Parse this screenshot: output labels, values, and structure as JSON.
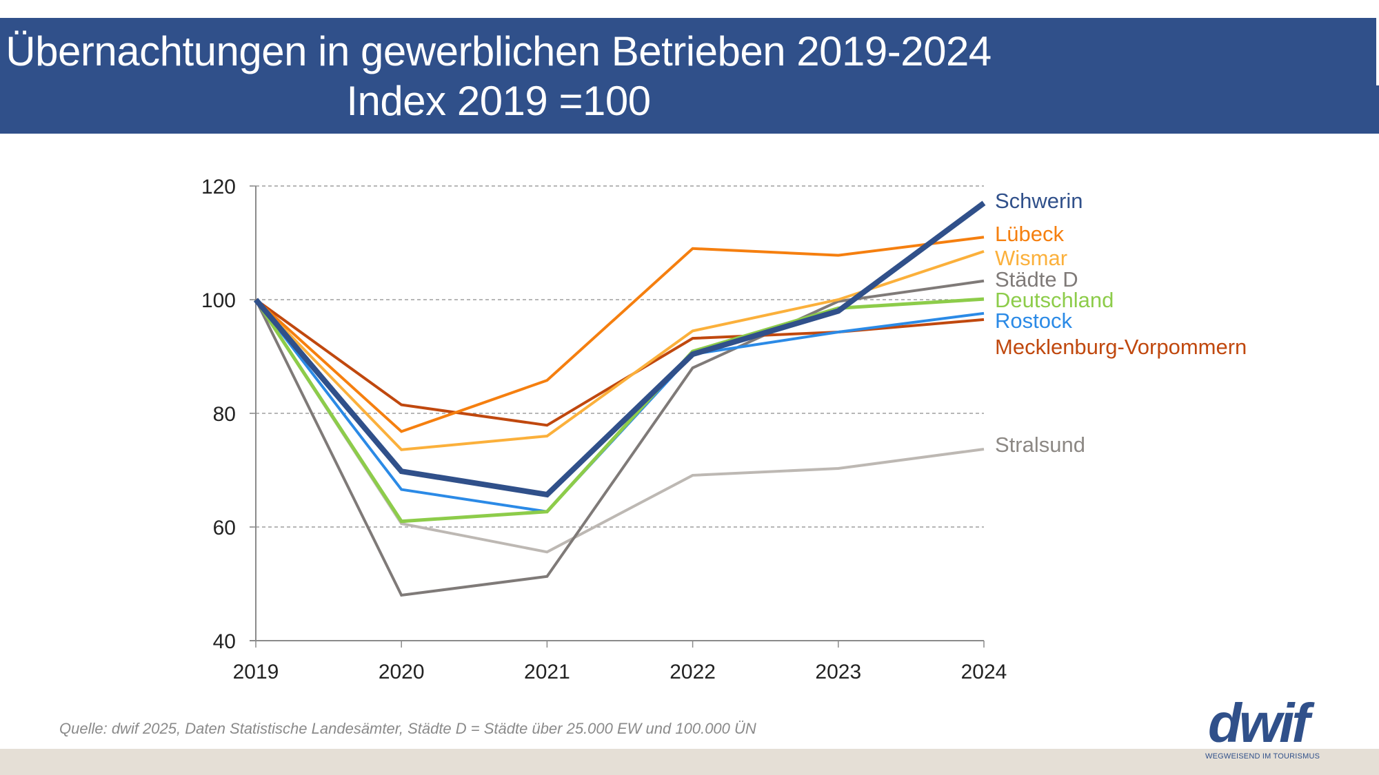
{
  "header": {
    "title_line1": "Übernachtungen in gewerblichen Betrieben 2019-2024",
    "title_line2": "Index 2019 =100"
  },
  "footer": {
    "source": "Quelle:  dwif 2025, Daten Statistische Landesämter, Städte D = Städte über 25.000 EW und 100.000 ÜN",
    "logo": "dwif",
    "tagline": "WEGWEISEND IM TOURISMUS"
  },
  "colors": {
    "header_bg": "#30508a",
    "footer_bg": "#e5dfd6"
  },
  "chart_data": {
    "type": "line",
    "title": "Übernachtungen in gewerblichen Betrieben 2019-2024",
    "subtitle": "Index 2019 =100",
    "xlabel": "",
    "ylabel": "",
    "x": [
      "2019",
      "2020",
      "2021",
      "2022",
      "2023",
      "2024"
    ],
    "ylim": [
      40,
      120
    ],
    "yticks": [
      40,
      60,
      80,
      100,
      120
    ],
    "grid": "horizontal dashed",
    "legend": "direct labels at right end of lines",
    "series": [
      {
        "name": "Schwerin",
        "color": "#30508a",
        "values": [
          100,
          69.8,
          65.7,
          90.4,
          98.0,
          117.0
        ]
      },
      {
        "name": "Lübeck",
        "color": "#f57f0f",
        "values": [
          100,
          76.8,
          85.8,
          109.0,
          107.8,
          111.0
        ]
      },
      {
        "name": "Wismar",
        "color": "#fbb03b",
        "values": [
          100,
          73.6,
          76.0,
          94.5,
          100.0,
          108.5
        ]
      },
      {
        "name": "Städte D",
        "color": "#7f7a78",
        "values": [
          100,
          48.0,
          51.3,
          88.0,
          99.7,
          103.3
        ]
      },
      {
        "name": "Deutschland",
        "color": "#8dcc4a",
        "values": [
          100,
          61.0,
          62.7,
          90.9,
          98.5,
          100.1
        ]
      },
      {
        "name": "Rostock",
        "color": "#2b8ae6",
        "values": [
          100,
          66.6,
          62.7,
          90.4,
          94.3,
          97.6
        ]
      },
      {
        "name": "Mecklenburg-Vorpommern",
        "color": "#c0480e",
        "values": [
          100,
          81.5,
          77.9,
          93.2,
          94.3,
          96.5
        ]
      },
      {
        "name": "Stralsund",
        "color": "#bdb8b3",
        "values": [
          100,
          60.6,
          55.6,
          69.1,
          70.3,
          73.7
        ]
      }
    ]
  }
}
